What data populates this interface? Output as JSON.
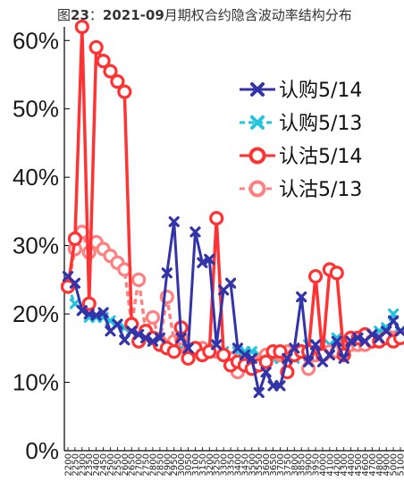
{
  "title": {
    "prefix": "图",
    "number": "23",
    "sep": "：",
    "month": "2021-09",
    "rest": "月期权合约隐含波动率结构分布"
  },
  "colors": {
    "call_514": "#3333aa",
    "call_513": "#22c5dd",
    "put_514": "#ff3333",
    "put_513": "#ff8080",
    "axis": "#000000"
  },
  "chart_data": {
    "type": "line",
    "title": "图23：2021-09月期权合约隐含波动率结构分布",
    "xlabel": "",
    "ylabel": "",
    "ylim": [
      0,
      62
    ],
    "yticks": [
      0,
      10,
      20,
      30,
      40,
      50,
      60
    ],
    "ytick_labels": [
      "0%",
      "10%",
      "20%",
      "30%",
      "40%",
      "50%",
      "60%"
    ],
    "grid": false,
    "legend_position": "top-right",
    "xtick_labels": [
      "2200",
      "2250",
      "2300",
      "2350",
      "2400",
      "2450",
      "2500",
      "2550",
      "2600",
      "2650",
      "2700",
      "2750",
      "2800",
      "2850",
      "2900",
      "2950",
      "3000",
      "3050",
      "3100",
      "3150",
      "3200",
      "3250",
      "3300",
      "3350",
      "3400",
      "3450",
      "3500",
      "3550",
      "3600",
      "3650",
      "3700",
      "3750",
      "3800",
      "3850",
      "3900",
      "3950",
      "4000",
      "4100",
      "4200",
      "4300",
      "4400",
      "4500",
      "4600",
      "4700",
      "4800",
      "4900",
      "5000",
      "5100"
    ],
    "x": [
      2200,
      2250,
      2300,
      2350,
      2400,
      2450,
      2500,
      2550,
      2600,
      2650,
      2700,
      2750,
      2800,
      2850,
      2900,
      2950,
      3000,
      3050,
      3100,
      3150,
      3200,
      3250,
      3300,
      3350,
      3400,
      3450,
      3500,
      3550,
      3600,
      3650,
      3700,
      3750,
      3800,
      3850,
      3900,
      3950,
      4000,
      4100,
      4200,
      4300,
      4400,
      4500,
      4600,
      4700,
      4800,
      4900,
      5000,
      5100
    ],
    "series": [
      {
        "name": "认购5/14",
        "marker": "x",
        "color_key": "call_514",
        "values": [
          25.5,
          24.5,
          20.5,
          20.0,
          19.8,
          20.2,
          17.5,
          18.5,
          16.2,
          17.5,
          17.0,
          16.5,
          16.0,
          16.5,
          26.0,
          33.5,
          16.5,
          15.0,
          32.0,
          27.5,
          28.0,
          15.5,
          23.5,
          24.5,
          15.0,
          14.0,
          13.5,
          8.5,
          11.5,
          9.5,
          9.5,
          13.5,
          15.0,
          22.5,
          13.0,
          15.5,
          13.0,
          14.0,
          16.0,
          13.5,
          16.0,
          16.5,
          16.0,
          17.0,
          16.5,
          17.5,
          19.0,
          17.5
        ]
      },
      {
        "name": "认购5/13",
        "marker": "x",
        "color_key": "call_513",
        "values": [
          24.0,
          21.5,
          20.5,
          19.5,
          19.5,
          19.5,
          19.0,
          18.5,
          18.0,
          17.5,
          17.0,
          16.5,
          16.0,
          15.5,
          15.5,
          15.0,
          15.0,
          15.0,
          15.0,
          15.0,
          15.0,
          14.5,
          14.5,
          14.0,
          14.5,
          14.5,
          14.5,
          14.0,
          13.5,
          13.5,
          13.5,
          13.5,
          13.5,
          14.0,
          15.5,
          14.5,
          14.5,
          15.5,
          16.5,
          14.5,
          15.5,
          16.0,
          16.0,
          17.0,
          17.5,
          18.0,
          20.0,
          17.0
        ]
      },
      {
        "name": "认沽5/14",
        "marker": "o",
        "color_key": "put_514",
        "values": [
          24.0,
          31.0,
          62.0,
          21.5,
          59.0,
          57.0,
          55.5,
          54.0,
          52.5,
          18.5,
          16.0,
          17.5,
          16.5,
          15.5,
          15.0,
          14.5,
          18.0,
          13.5,
          15.0,
          14.0,
          14.5,
          34.0,
          14.0,
          12.5,
          13.0,
          12.5,
          12.0,
          12.5,
          13.0,
          14.5,
          14.5,
          11.5,
          14.0,
          14.5,
          14.5,
          25.5,
          14.0,
          26.5,
          26.0,
          14.0,
          16.5,
          16.5,
          17.0,
          16.0,
          16.0,
          16.5,
          16.0,
          16.5
        ]
      },
      {
        "name": "认沽5/13",
        "marker": "o",
        "color_key": "put_513",
        "values": [
          24.0,
          29.5,
          32.0,
          29.0,
          30.5,
          29.5,
          28.5,
          27.5,
          26.5,
          18.5,
          25.0,
          17.5,
          19.5,
          16.0,
          22.5,
          16.0,
          16.5,
          14.5,
          15.0,
          15.0,
          14.5,
          14.5,
          14.0,
          13.5,
          11.5,
          12.5,
          12.0,
          13.0,
          14.0,
          14.5,
          14.0,
          14.5,
          14.0,
          14.5,
          12.0,
          14.0,
          14.5,
          14.5,
          14.5,
          15.0,
          15.5,
          15.5,
          15.5,
          16.0,
          16.0,
          16.5,
          16.5,
          16.5
        ]
      }
    ]
  }
}
